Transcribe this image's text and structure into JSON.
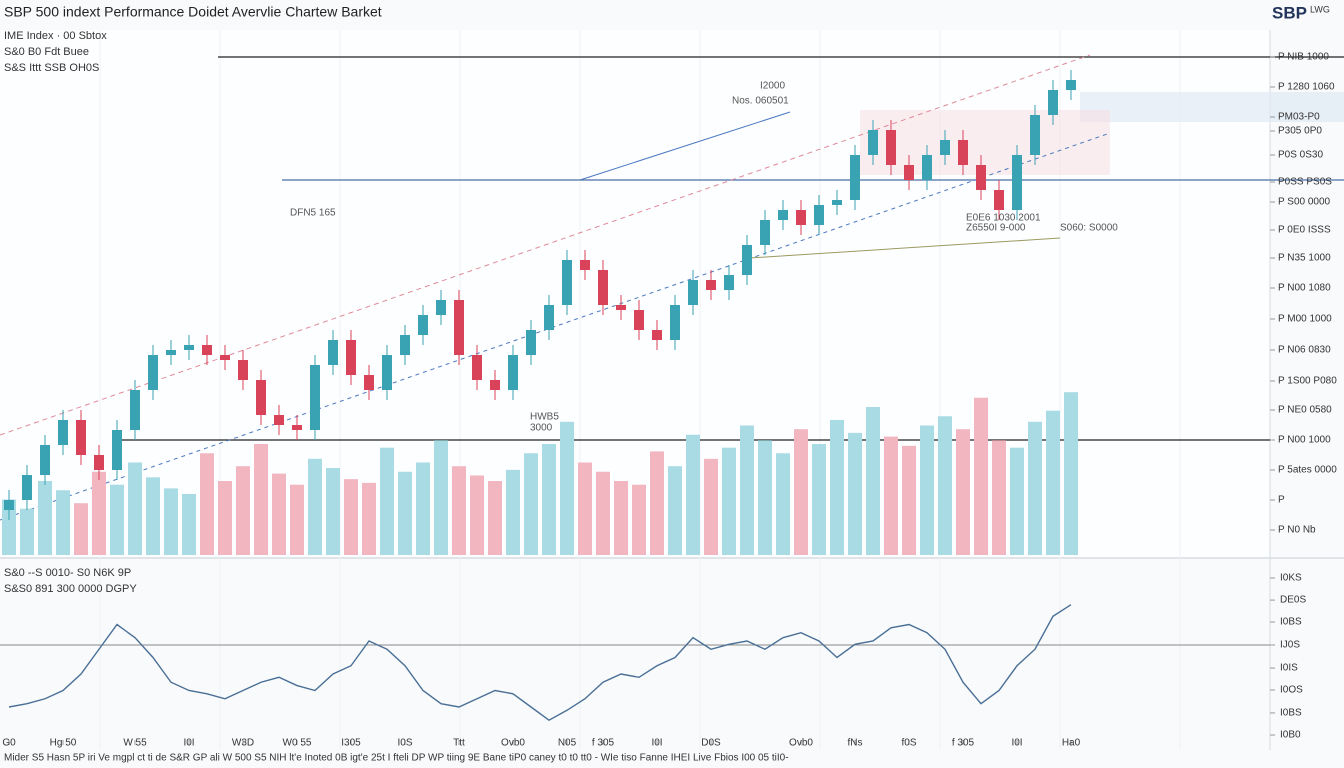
{
  "header": {
    "logo": "SBP",
    "logo_sub": "LWG",
    "footer": "Mider S5 Hasn 5P iri Ve mgpl ct ti de S&R GP ali W 500 S5 NIH lt'e Inoted 0B igt'e 25t I fteli DP WP tiing 9E Bane tiP0 caney t0 t0 tt0 -  WIe tiso Fanne IHEI Live Fbios I00 05 tiI0-"
  },
  "chart_data": [
    {
      "type": "candlestick",
      "title": "SBP 500 indext Performance  Doidet Avervlie Chartew Barket",
      "subtitle": [
        "IME Index · 00 Sbtox",
        "S&0 B0 Fdt Buee",
        "S&S Ittt SSB OH0S"
      ],
      "annotations": [
        "I2000",
        "Nos. 060501",
        "DFN5 165",
        "E0E6 1030 2001",
        "Z6550I 9-000",
        "S060: S0000",
        "HWB5",
        "3000"
      ],
      "up_color": "#3aa3b3",
      "down_color": "#d9435a",
      "volume_up_color": "#a8dbe3",
      "volume_down_color": "#f2b6c0",
      "ylim": [
        0,
        100
      ],
      "yticks": [
        {
          "value": 99.6,
          "label": "P NIB 1000"
        },
        {
          "value": 93.6,
          "label": "P 1280 1060"
        },
        {
          "value": 87.6,
          "label": "PM03-P0"
        },
        {
          "value": 84.8,
          "label": "P305 0P0"
        },
        {
          "value": 80,
          "label": "P0S 0S30"
        },
        {
          "value": 74.6,
          "label": "P0SS PS0S"
        },
        {
          "value": 70.6,
          "label": "P S00 0000"
        },
        {
          "value": 65,
          "label": "P 0E0 ISSS"
        },
        {
          "value": 59.4,
          "label": "P N35 1000"
        },
        {
          "value": 53.4,
          "label": "P N00 1080"
        },
        {
          "value": 47.2,
          "label": "P M00 1000"
        },
        {
          "value": 41,
          "label": "P N06 0830"
        },
        {
          "value": 34.8,
          "label": "P 1S00 P080"
        },
        {
          "value": 29,
          "label": "P NE0 0580"
        },
        {
          "value": 23,
          "label": "P N00 1000"
        },
        {
          "value": 17,
          "label": "P 5ates 0000"
        },
        {
          "value": 11,
          "label": "P"
        },
        {
          "value": 5,
          "label": "P N0 Nb"
        }
      ],
      "xticks": [
        {
          "value": 0,
          "label": "G0"
        },
        {
          "value": 3,
          "label": "Hg 50"
        },
        {
          "value": 7,
          "label": "W 55"
        },
        {
          "value": 10,
          "label": "I0I"
        },
        {
          "value": 13,
          "label": "W3D"
        },
        {
          "value": 16,
          "label": "W0 55"
        },
        {
          "value": 19,
          "label": "I305"
        },
        {
          "value": 22,
          "label": "I0S"
        },
        {
          "value": 25,
          "label": "Ttt"
        },
        {
          "value": 28,
          "label": "Ovb0"
        },
        {
          "value": 31,
          "label": "N05"
        },
        {
          "value": 33,
          "label": "f 305"
        },
        {
          "value": 36,
          "label": "I0I"
        },
        {
          "value": 39,
          "label": "D0S"
        },
        {
          "value": 44,
          "label": "Ovb0"
        },
        {
          "value": 47,
          "label": "fNs"
        },
        {
          "value": 50,
          "label": "f0S"
        },
        {
          "value": 53,
          "label": "f 305"
        },
        {
          "value": 56,
          "label": "I0I"
        },
        {
          "value": 59,
          "label": "Ha0"
        }
      ],
      "open": [
        9,
        11,
        16,
        22,
        27,
        20,
        17,
        25,
        33,
        40,
        41,
        42,
        40,
        39,
        35,
        28,
        26,
        25,
        38,
        43,
        36,
        33,
        40,
        44,
        48,
        51,
        40,
        35,
        33,
        40,
        45,
        50,
        59,
        57,
        50,
        49,
        45,
        43,
        50,
        55,
        53,
        56,
        62,
        67,
        69,
        66,
        70,
        71,
        80,
        85,
        78,
        75,
        80,
        83,
        78,
        73,
        69,
        80,
        88,
        93
      ],
      "high": [
        13,
        18,
        24,
        29,
        29,
        22,
        27,
        35,
        42,
        43,
        44,
        44,
        42,
        41,
        37,
        30,
        28,
        40,
        45,
        45,
        38,
        42,
        46,
        50,
        53,
        53,
        42,
        37,
        42,
        47,
        52,
        61,
        61,
        59,
        52,
        51,
        47,
        52,
        57,
        57,
        58,
        64,
        69,
        71,
        71,
        72,
        73,
        82,
        87,
        87,
        80,
        82,
        85,
        85,
        80,
        75,
        82,
        90,
        95,
        97
      ],
      "low": [
        7,
        9,
        14,
        20,
        18,
        15,
        15,
        23,
        31,
        38,
        39,
        38,
        37,
        33,
        26,
        24,
        23,
        23,
        36,
        34,
        31,
        31,
        38,
        42,
        46,
        38,
        33,
        31,
        31,
        38,
        43,
        48,
        55,
        48,
        47,
        43,
        41,
        41,
        48,
        51,
        51,
        54,
        60,
        65,
        64,
        64,
        68,
        69,
        78,
        76,
        73,
        73,
        78,
        76,
        71,
        67,
        67,
        78,
        86,
        91
      ],
      "close": [
        11,
        16,
        22,
        27,
        20,
        17,
        25,
        33,
        40,
        41,
        42,
        40,
        39,
        35,
        28,
        26,
        25,
        38,
        43,
        36,
        33,
        40,
        44,
        48,
        51,
        40,
        35,
        33,
        40,
        45,
        50,
        59,
        57,
        50,
        49,
        45,
        43,
        50,
        55,
        53,
        56,
        62,
        67,
        69,
        66,
        70,
        71,
        80,
        85,
        78,
        75,
        80,
        83,
        78,
        73,
        69,
        80,
        88,
        93,
        95
      ],
      "volume": [
        30,
        25,
        40,
        35,
        28,
        45,
        38,
        50,
        42,
        36,
        33,
        55,
        40,
        48,
        60,
        44,
        38,
        52,
        47,
        41,
        39,
        58,
        45,
        50,
        62,
        48,
        43,
        40,
        46,
        55,
        60,
        72,
        50,
        45,
        40,
        38,
        56,
        48,
        65,
        52,
        58,
        70,
        62,
        55,
        68,
        60,
        73,
        66,
        80,
        64,
        59,
        70,
        75,
        68,
        85,
        62,
        58,
        72,
        78,
        88
      ],
      "y2lim": [
        0,
        100
      ]
    },
    {
      "type": "line",
      "subtitle": [
        "S&0 --S 0010- S0 N6K 9P",
        "S&S0 891 300 0000 DGPY"
      ],
      "color": "#4a6f95",
      "ylim": [
        0,
        100
      ],
      "yticks": [
        {
          "value": 98.2,
          "label": "I0KS"
        },
        {
          "value": 84.8,
          "label": "DE0S"
        },
        {
          "value": 71.5,
          "label": "I0BS"
        },
        {
          "value": 57.6,
          "label": "IJ0S"
        },
        {
          "value": 43.6,
          "label": "I0IS"
        },
        {
          "value": 30.3,
          "label": "I0OS"
        },
        {
          "value": 16.4,
          "label": "I0BS"
        },
        {
          "value": 3,
          "label": "I0B0"
        }
      ],
      "values": [
        20,
        22,
        25,
        30,
        40,
        55,
        70,
        62,
        50,
        35,
        30,
        28,
        25,
        30,
        35,
        38,
        33,
        30,
        40,
        45,
        60,
        55,
        45,
        30,
        22,
        20,
        25,
        30,
        28,
        20,
        12,
        18,
        25,
        35,
        40,
        38,
        45,
        50,
        62,
        55,
        58,
        60,
        55,
        62,
        65,
        60,
        50,
        58,
        60,
        68,
        70,
        65,
        55,
        35,
        22,
        30,
        45,
        55,
        75,
        82
      ]
    }
  ]
}
